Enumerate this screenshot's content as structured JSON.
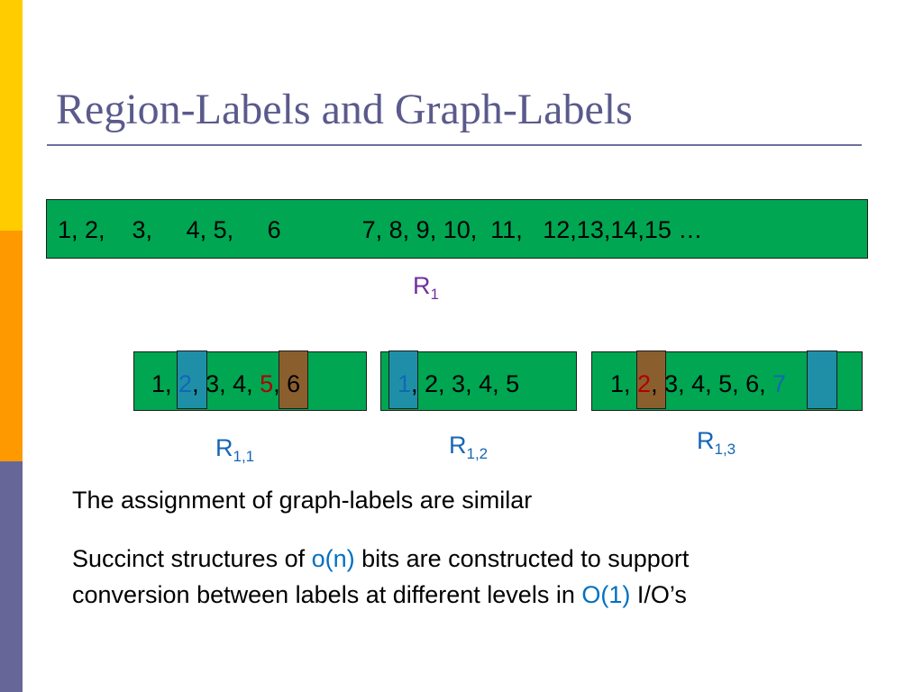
{
  "slide": {
    "title": "Region-Labels and Graph-Labels",
    "top_sequence": "1, 2,    3,     4, 5,     6            7, 8, 9, 10,  11,   12,13,14,15 …",
    "r1": {
      "base": "R",
      "sub": "1"
    },
    "box_a": {
      "t1": "1, ",
      "t2": "2",
      "t3": ", 3, 4, ",
      "t4": "5",
      "t5": ", 6"
    },
    "box_b": {
      "t1": "1",
      "t2": ", 2, 3, 4, 5"
    },
    "box_c": {
      "t1": "1, ",
      "t2": "2",
      "t3": ", 3, 4, 5, 6, ",
      "t4": "7"
    },
    "r11": {
      "base": "R",
      "sub": "1,1"
    },
    "r12": {
      "base": "R",
      "sub": "1,2"
    },
    "r13": {
      "base": "R",
      "sub": "1,3"
    },
    "para1": "The assignment of graph-labels are similar",
    "para2": {
      "line1_a": "Succinct structures of ",
      "line1_hi": "o(n)",
      "line1_b": " bits are constructed to support",
      "line2_a": "conversion between labels at different levels in ",
      "line2_hi": "O(1)",
      "line2_b": " I/O’s"
    },
    "colors": {
      "green": "#00A651",
      "title": "#5A5A8C",
      "highlight_blue": "#1F8FA8",
      "highlight_brown": "#8B5E2E",
      "text_red": "#B00000",
      "text_blue": "#1566B6",
      "label_purple": "#7030A0"
    }
  }
}
